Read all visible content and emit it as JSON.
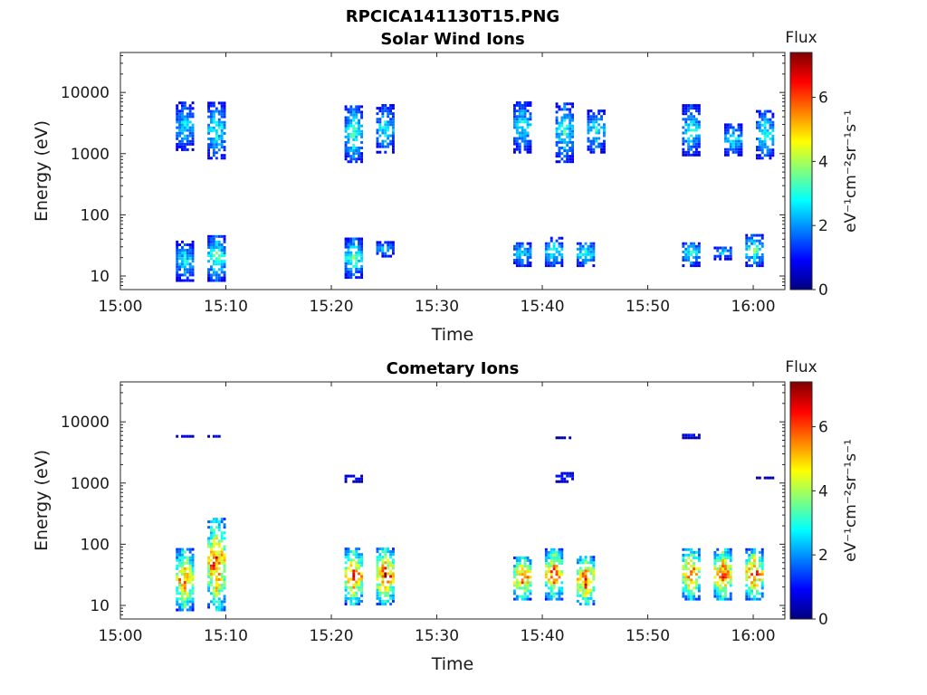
{
  "figure": {
    "title": "RPCICA141130T15.PNG"
  },
  "colormap": [
    "#00007f",
    "#0000ff",
    "#007fff",
    "#00ffff",
    "#7fff7f",
    "#ffff00",
    "#ff7f00",
    "#ff0000",
    "#7f0000"
  ],
  "chart_data": [
    {
      "type": "heatmap",
      "title": "Solar Wind Ions",
      "xlabel": "Time",
      "ylabel": "Energy (eV)",
      "y_scale": "log",
      "xlim": [
        "15:00",
        "16:03"
      ],
      "ylim": [
        6,
        45000
      ],
      "x_ticks": [
        "15:00",
        "15:10",
        "15:20",
        "15:30",
        "15:40",
        "15:50",
        "16:00"
      ],
      "y_ticks": [
        10,
        100,
        1000,
        10000
      ],
      "y_tick_labels": [
        "10",
        "100",
        "1000",
        "10000"
      ],
      "colorbar": {
        "title": "Flux",
        "unit": "eV⁻¹cm⁻²sr⁻¹s⁻¹",
        "range": [
          0,
          7.4
        ],
        "ticks": [
          0,
          2,
          4,
          6
        ],
        "tick_labels": [
          "0",
          "2",
          "4",
          "6"
        ]
      },
      "blobs": [
        {
          "t": "15:06",
          "emin": 1100,
          "emax": 6500,
          "level": 2.8
        },
        {
          "t": "15:09",
          "emin": 800,
          "emax": 6500,
          "level": 3.2
        },
        {
          "t": "15:22",
          "emin": 700,
          "emax": 6000,
          "level": 3.4
        },
        {
          "t": "15:25",
          "emin": 1000,
          "emax": 6000,
          "level": 3.0
        },
        {
          "t": "15:38",
          "emin": 1000,
          "emax": 7000,
          "level": 3.0
        },
        {
          "t": "15:42",
          "emin": 700,
          "emax": 6500,
          "level": 3.2
        },
        {
          "t": "15:45",
          "emin": 1000,
          "emax": 5000,
          "level": 3.0
        },
        {
          "t": "15:54",
          "emin": 900,
          "emax": 6000,
          "level": 3.0
        },
        {
          "t": "15:58",
          "emin": 900,
          "emax": 3000,
          "level": 3.0
        },
        {
          "t": "16:01",
          "emin": 800,
          "emax": 5000,
          "level": 3.2
        },
        {
          "t": "15:06",
          "emin": 8,
          "emax": 35,
          "level": 3.0
        },
        {
          "t": "15:09",
          "emin": 8,
          "emax": 45,
          "level": 3.6
        },
        {
          "t": "15:22",
          "emin": 9,
          "emax": 40,
          "level": 3.6
        },
        {
          "t": "15:25",
          "emin": 20,
          "emax": 35,
          "level": 2.8
        },
        {
          "t": "15:38",
          "emin": 14,
          "emax": 35,
          "level": 3.0
        },
        {
          "t": "15:41",
          "emin": 14,
          "emax": 40,
          "level": 3.4
        },
        {
          "t": "15:44",
          "emin": 14,
          "emax": 35,
          "level": 3.4
        },
        {
          "t": "15:54",
          "emin": 14,
          "emax": 35,
          "level": 3.2
        },
        {
          "t": "15:57",
          "emin": 18,
          "emax": 30,
          "level": 2.6
        },
        {
          "t": "16:00",
          "emin": 14,
          "emax": 45,
          "level": 3.6
        }
      ]
    },
    {
      "type": "heatmap",
      "title": "Cometary Ions",
      "xlabel": "Time",
      "ylabel": "Energy (eV)",
      "y_scale": "log",
      "xlim": [
        "15:00",
        "16:03"
      ],
      "ylim": [
        6,
        45000
      ],
      "x_ticks": [
        "15:00",
        "15:10",
        "15:20",
        "15:30",
        "15:40",
        "15:50",
        "16:00"
      ],
      "y_ticks": [
        10,
        100,
        1000,
        10000
      ],
      "y_tick_labels": [
        "10",
        "100",
        "1000",
        "10000"
      ],
      "colorbar": {
        "title": "Flux",
        "unit": "eV⁻¹cm⁻²sr⁻¹s⁻¹",
        "range": [
          0,
          7.4
        ],
        "ticks": [
          0,
          2,
          4,
          6
        ],
        "tick_labels": [
          "0",
          "2",
          "4",
          "6"
        ]
      },
      "blobs": [
        {
          "t": "15:06",
          "emin": 8,
          "emax": 80,
          "level": 6.0
        },
        {
          "t": "15:09",
          "emin": 8,
          "emax": 250,
          "level": 6.4
        },
        {
          "t": "15:22",
          "emin": 10,
          "emax": 80,
          "level": 6.4
        },
        {
          "t": "15:25",
          "emin": 10,
          "emax": 80,
          "level": 6.6
        },
        {
          "t": "15:38",
          "emin": 12,
          "emax": 60,
          "level": 6.2
        },
        {
          "t": "15:41",
          "emin": 12,
          "emax": 80,
          "level": 6.2
        },
        {
          "t": "15:44",
          "emin": 10,
          "emax": 60,
          "level": 6.6
        },
        {
          "t": "15:54",
          "emin": 12,
          "emax": 80,
          "level": 6.2
        },
        {
          "t": "15:57",
          "emin": 12,
          "emax": 80,
          "level": 6.4
        },
        {
          "t": "16:00",
          "emin": 12,
          "emax": 80,
          "level": 6.2
        },
        {
          "t": "15:06",
          "emin": 5500,
          "emax": 6000,
          "level": 2.0
        },
        {
          "t": "15:09",
          "emin": 5500,
          "emax": 6000,
          "level": 2.0
        },
        {
          "t": "15:22",
          "emin": 1000,
          "emax": 1300,
          "level": 1.2
        },
        {
          "t": "15:42",
          "emin": 5200,
          "emax": 5600,
          "level": 1.0
        },
        {
          "t": "15:42",
          "emin": 1000,
          "emax": 1400,
          "level": 1.4
        },
        {
          "t": "15:54",
          "emin": 5200,
          "emax": 6200,
          "level": 1.2
        },
        {
          "t": "16:01",
          "emin": 1150,
          "emax": 1250,
          "level": 1.2
        }
      ]
    }
  ]
}
